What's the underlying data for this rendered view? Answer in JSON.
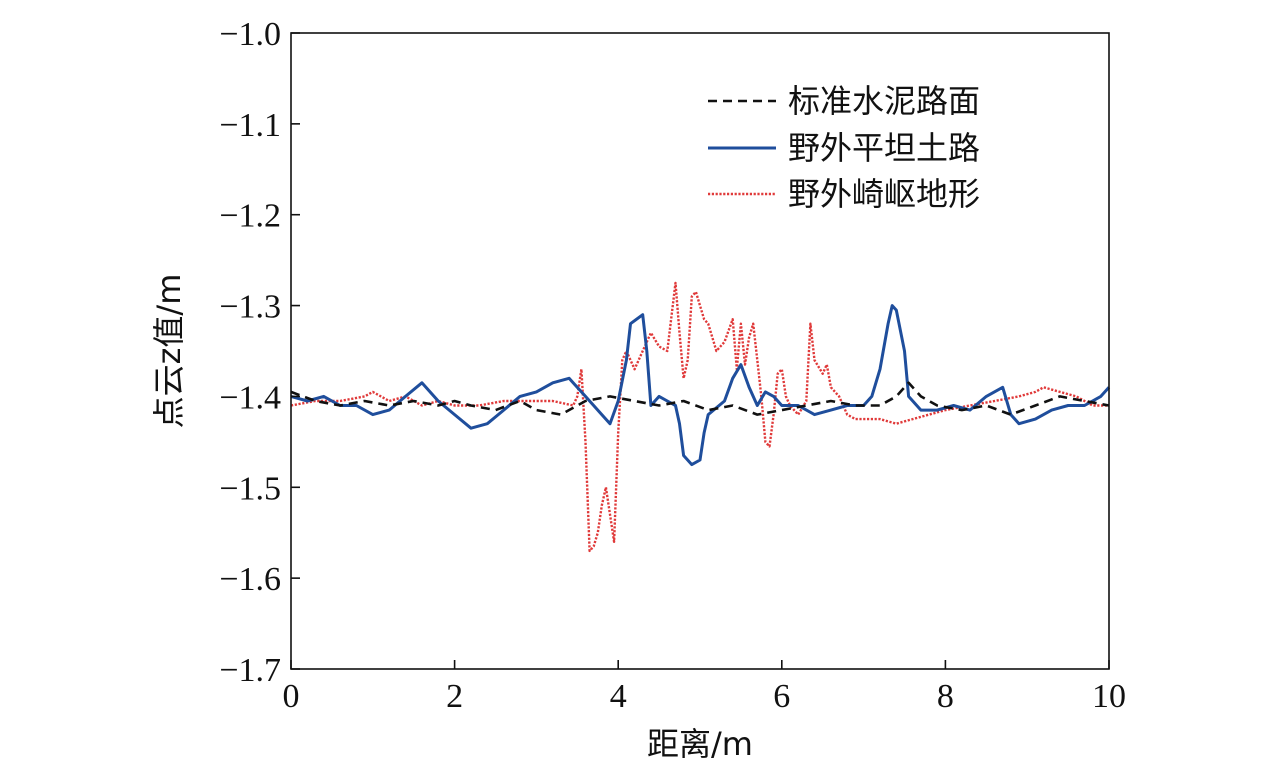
{
  "chart_data": {
    "type": "line",
    "title": "",
    "xlabel": "距离/m",
    "ylabel": "点云z值/m",
    "xlim": [
      0,
      10
    ],
    "ylim": [
      -1.7,
      -1.0
    ],
    "xticks": [
      0,
      2,
      4,
      6,
      8,
      10
    ],
    "yticks": [
      -1.0,
      -1.1,
      -1.2,
      -1.3,
      -1.4,
      -1.5,
      -1.6,
      -1.7
    ],
    "xtick_labels": [
      "0",
      "2",
      "4",
      "6",
      "8",
      "10"
    ],
    "ytick_labels": [
      "−1.0",
      "−1.1",
      "−1.2",
      "−1.3",
      "−1.4",
      "−1.5",
      "−1.6",
      "−1.7"
    ],
    "grid": false,
    "legend_position": "top-right",
    "series": [
      {
        "name": "标准水泥路面",
        "color": "#111111",
        "style": "dashed",
        "x": [
          0,
          0.3,
          0.6,
          0.9,
          1.2,
          1.5,
          1.8,
          2.0,
          2.2,
          2.5,
          2.8,
          3.0,
          3.3,
          3.6,
          3.9,
          4.2,
          4.5,
          4.8,
          5.1,
          5.4,
          5.7,
          6.0,
          6.3,
          6.6,
          6.9,
          7.2,
          7.4,
          7.55,
          7.7,
          7.9,
          8.2,
          8.5,
          8.8,
          9.1,
          9.4,
          9.7,
          10.0
        ],
        "y": [
          -1.395,
          -1.405,
          -1.41,
          -1.405,
          -1.41,
          -1.405,
          -1.41,
          -1.405,
          -1.41,
          -1.415,
          -1.405,
          -1.415,
          -1.42,
          -1.405,
          -1.4,
          -1.405,
          -1.41,
          -1.405,
          -1.415,
          -1.41,
          -1.42,
          -1.415,
          -1.41,
          -1.405,
          -1.41,
          -1.41,
          -1.4,
          -1.385,
          -1.4,
          -1.41,
          -1.415,
          -1.41,
          -1.42,
          -1.41,
          -1.4,
          -1.405,
          -1.41
        ]
      },
      {
        "name": "野外平坦土路",
        "color": "#1f4e9c",
        "style": "solid",
        "x": [
          0,
          0.2,
          0.4,
          0.6,
          0.8,
          1.0,
          1.2,
          1.4,
          1.6,
          1.8,
          2.0,
          2.2,
          2.4,
          2.6,
          2.8,
          3.0,
          3.2,
          3.4,
          3.6,
          3.8,
          3.9,
          4.0,
          4.1,
          4.15,
          4.3,
          4.35,
          4.4,
          4.5,
          4.6,
          4.7,
          4.75,
          4.8,
          4.9,
          5.0,
          5.05,
          5.1,
          5.3,
          5.4,
          5.5,
          5.6,
          5.7,
          5.8,
          5.9,
          6.0,
          6.2,
          6.4,
          6.6,
          6.8,
          7.0,
          7.1,
          7.2,
          7.3,
          7.35,
          7.4,
          7.5,
          7.55,
          7.7,
          7.9,
          8.1,
          8.3,
          8.5,
          8.7,
          8.8,
          8.9,
          9.1,
          9.3,
          9.5,
          9.7,
          9.9,
          10.0
        ],
        "y": [
          -1.4,
          -1.405,
          -1.4,
          -1.41,
          -1.41,
          -1.42,
          -1.415,
          -1.4,
          -1.385,
          -1.405,
          -1.42,
          -1.435,
          -1.43,
          -1.415,
          -1.4,
          -1.395,
          -1.385,
          -1.38,
          -1.4,
          -1.42,
          -1.43,
          -1.405,
          -1.36,
          -1.32,
          -1.31,
          -1.35,
          -1.41,
          -1.4,
          -1.405,
          -1.41,
          -1.43,
          -1.465,
          -1.475,
          -1.47,
          -1.44,
          -1.42,
          -1.405,
          -1.38,
          -1.365,
          -1.39,
          -1.41,
          -1.395,
          -1.4,
          -1.41,
          -1.41,
          -1.42,
          -1.415,
          -1.41,
          -1.41,
          -1.4,
          -1.37,
          -1.32,
          -1.3,
          -1.305,
          -1.35,
          -1.4,
          -1.415,
          -1.415,
          -1.41,
          -1.415,
          -1.4,
          -1.39,
          -1.42,
          -1.43,
          -1.425,
          -1.415,
          -1.41,
          -1.41,
          -1.4,
          -1.39
        ]
      },
      {
        "name": "野外崎岖地形",
        "color": "#e03a3a",
        "style": "dotted",
        "x": [
          0,
          0.3,
          0.6,
          0.9,
          1.0,
          1.2,
          1.4,
          1.6,
          1.8,
          2.0,
          2.3,
          2.6,
          2.9,
          3.2,
          3.45,
          3.5,
          3.55,
          3.6,
          3.65,
          3.7,
          3.75,
          3.8,
          3.85,
          3.9,
          3.95,
          4.0,
          4.05,
          4.1,
          4.2,
          4.3,
          4.4,
          4.5,
          4.6,
          4.7,
          4.75,
          4.8,
          4.85,
          4.9,
          4.95,
          5.0,
          5.05,
          5.1,
          5.2,
          5.3,
          5.4,
          5.45,
          5.5,
          5.55,
          5.6,
          5.65,
          5.7,
          5.75,
          5.8,
          5.85,
          5.9,
          5.95,
          6.0,
          6.05,
          6.1,
          6.2,
          6.3,
          6.35,
          6.4,
          6.5,
          6.55,
          6.6,
          6.7,
          6.8,
          6.9,
          7.0,
          7.2,
          7.4,
          7.6,
          7.8,
          8.0,
          8.3,
          8.6,
          8.9,
          9.1,
          9.2,
          9.4,
          9.6,
          9.8,
          10.0
        ],
        "y": [
          -1.41,
          -1.405,
          -1.405,
          -1.4,
          -1.395,
          -1.405,
          -1.4,
          -1.41,
          -1.405,
          -1.41,
          -1.41,
          -1.405,
          -1.405,
          -1.405,
          -1.41,
          -1.4,
          -1.37,
          -1.45,
          -1.57,
          -1.565,
          -1.55,
          -1.52,
          -1.5,
          -1.53,
          -1.56,
          -1.44,
          -1.36,
          -1.35,
          -1.37,
          -1.35,
          -1.33,
          -1.345,
          -1.35,
          -1.275,
          -1.33,
          -1.38,
          -1.36,
          -1.29,
          -1.285,
          -1.3,
          -1.315,
          -1.32,
          -1.35,
          -1.34,
          -1.315,
          -1.37,
          -1.32,
          -1.365,
          -1.335,
          -1.32,
          -1.36,
          -1.4,
          -1.45,
          -1.455,
          -1.42,
          -1.375,
          -1.37,
          -1.4,
          -1.41,
          -1.42,
          -1.405,
          -1.32,
          -1.36,
          -1.375,
          -1.365,
          -1.39,
          -1.4,
          -1.42,
          -1.425,
          -1.425,
          -1.425,
          -1.43,
          -1.425,
          -1.42,
          -1.415,
          -1.41,
          -1.405,
          -1.4,
          -1.395,
          -1.39,
          -1.395,
          -1.4,
          -1.41,
          -1.41
        ]
      }
    ]
  }
}
